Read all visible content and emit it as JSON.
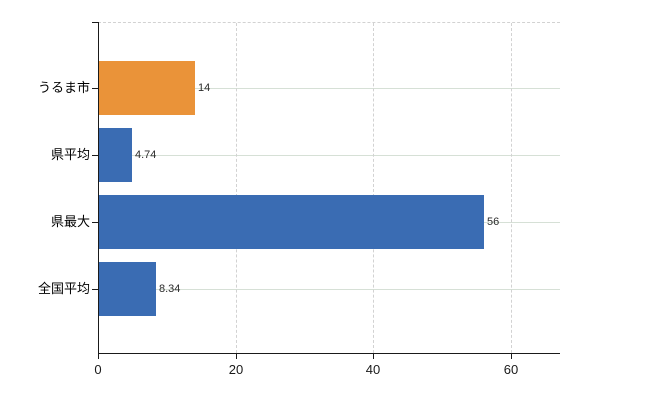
{
  "chart_data": {
    "type": "bar",
    "orientation": "horizontal",
    "title": "",
    "categories": [
      "うるま市",
      "県平均",
      "県最大",
      "全国平均"
    ],
    "values": [
      14,
      4.74,
      56,
      8.34
    ],
    "value_labels": [
      "14",
      "4.74",
      "56",
      "8.34"
    ],
    "bar_colors": [
      "#ea9339",
      "#3a6cb3",
      "#3a6cb3",
      "#3a6cb3"
    ],
    "x_ticks": [
      0,
      20,
      40,
      60
    ],
    "x_tick_labels": [
      "0",
      "20",
      "40",
      "60"
    ],
    "xlim": [
      0,
      67
    ],
    "grid": true,
    "legend_visible": false
  },
  "colors": {
    "background": "#ffffff",
    "bar_highlight_orange": "#ea9339",
    "bar_blue": "#3a6cb3",
    "grid_horizontal": "#d6e0d6",
    "grid_vertical_dashed": "#d2d2d2",
    "axis": "#1a1a1a",
    "value_label_text": "#2b2b2b",
    "category_label_text": "#000000"
  }
}
